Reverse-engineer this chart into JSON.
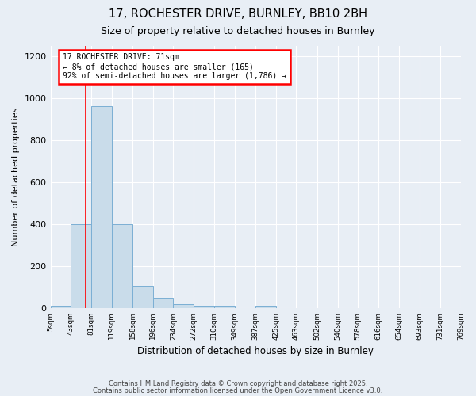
{
  "title1": "17, ROCHESTER DRIVE, BURNLEY, BB10 2BH",
  "title2": "Size of property relative to detached houses in Burnley",
  "xlabel": "Distribution of detached houses by size in Burnley",
  "ylabel": "Number of detached properties",
  "bins": [
    5,
    43,
    81,
    119,
    158,
    196,
    234,
    272,
    310,
    349,
    387,
    425,
    463,
    502,
    540,
    578,
    616,
    654,
    693,
    731,
    769
  ],
  "counts": [
    10,
    400,
    960,
    400,
    105,
    50,
    20,
    10,
    10,
    0,
    10,
    0,
    0,
    0,
    0,
    0,
    0,
    0,
    0,
    0
  ],
  "bar_color": "#c9dcea",
  "bar_edge_color": "#7bafd4",
  "red_line_x": 71,
  "ylim": [
    0,
    1250
  ],
  "annotation_line1": "17 ROCHESTER DRIVE: 71sqm",
  "annotation_line2": "← 8% of detached houses are smaller (165)",
  "annotation_line3": "92% of semi-detached houses are larger (1,786) →",
  "annotation_box_color": "white",
  "annotation_box_edge": "red",
  "footer1": "Contains HM Land Registry data © Crown copyright and database right 2025.",
  "footer2": "Contains public sector information licensed under the Open Government Licence v3.0.",
  "bg_color": "#e8eef5",
  "grid_color": "white",
  "yticks": [
    0,
    200,
    400,
    600,
    800,
    1000,
    1200
  ]
}
